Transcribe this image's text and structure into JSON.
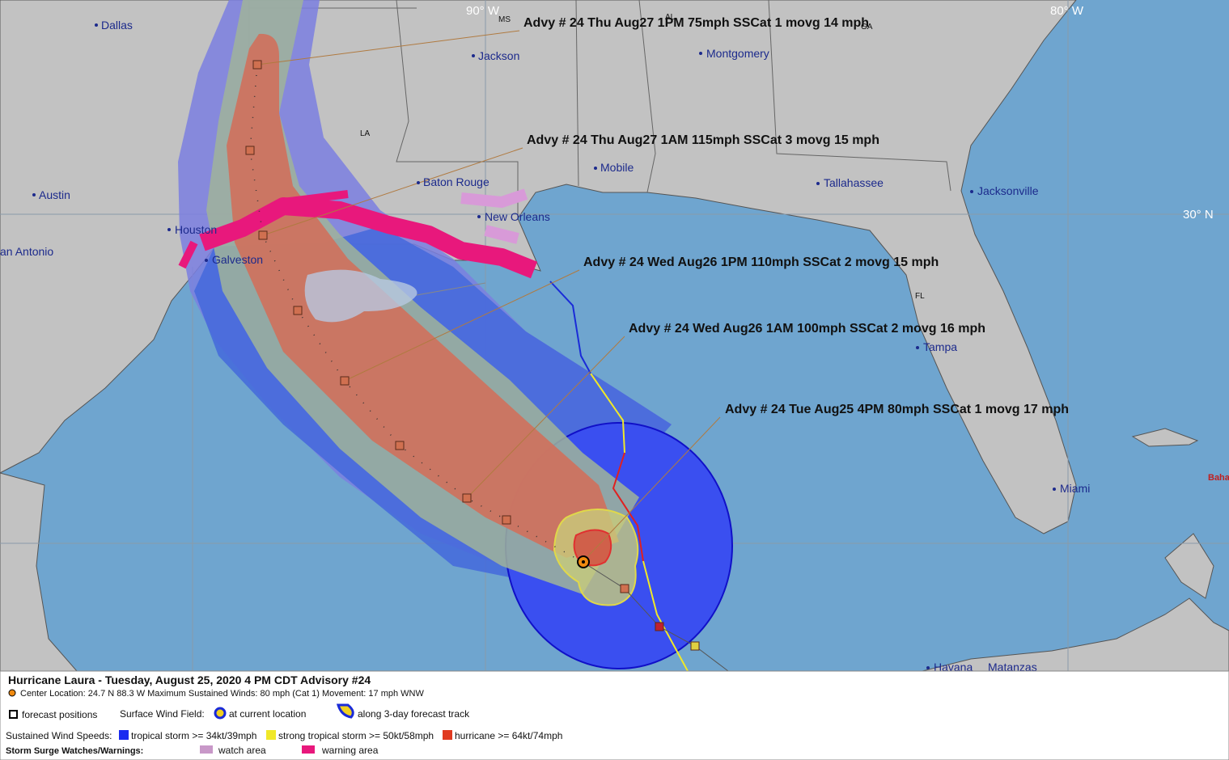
{
  "map": {
    "grid_labels": [
      "90° W",
      "80° W",
      "30° N"
    ],
    "state_labels": [
      "MS",
      "AL",
      "GA",
      "LA",
      "FL"
    ],
    "cities": [
      "Dallas",
      "Jackson",
      "Montgomery",
      "Austin",
      "Houston",
      "an Antonio",
      "Galveston",
      "Baton Rouge",
      "New Orleans",
      "Mobile",
      "Tallahassee",
      "Jacksonville",
      "Tampa",
      "Miami",
      "Havana",
      "Matanzas",
      "Baha"
    ],
    "advisories": [
      "Advy # 24 Thu Aug27 1PM  75mph SSCat 1 movg 14 mph",
      "Advy # 24 Thu Aug27 1AM  115mph SSCat 3 movg 15 mph",
      "Advy # 24 Wed Aug26 1PM  110mph SSCat 2 movg 15 mph",
      "Advy # 24 Wed Aug26 1AM  100mph SSCat 2 movg 16 mph",
      "Advy # 24 Tue Aug25 4PM  80mph SSCat 1 movg 17 mph"
    ]
  },
  "footer": {
    "title": "Hurricane Laura  -  Tuesday, August 25, 2020  4 PM CDT   Advisory #24",
    "center": "Center Location: 24.7 N   88.3 W   Maximum Sustained Winds: 80 mph (Cat 1) Movement: 17 mph WNW",
    "forecast_positions": "forecast positions",
    "surface_wind_field": "Surface Wind Field:",
    "at_current_location": "at current location",
    "along_track": "along 3-day forecast track",
    "sustained_label": "Sustained Wind Speeds:",
    "ts": "tropical storm >= 34kt/39mph",
    "sts": "strong tropical storm >= 50kt/58mph",
    "hu": "hurricane >= 64kt/74mph",
    "surge_label": "Storm Surge Watches/Warnings:",
    "watch": "watch area",
    "warning": "warning area"
  }
}
